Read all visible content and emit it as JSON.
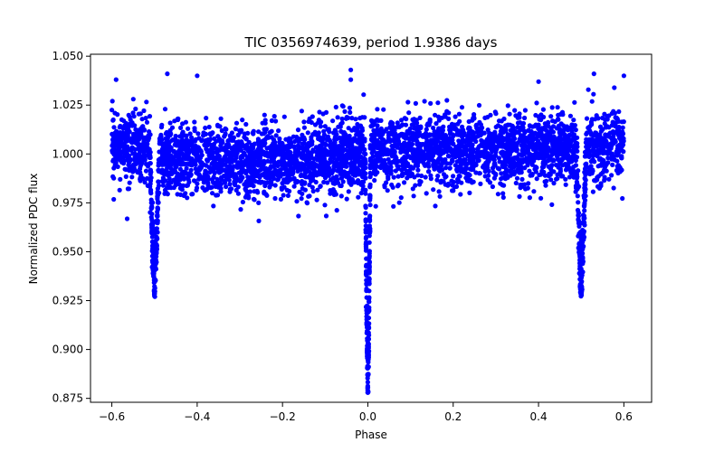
{
  "chart_data": {
    "type": "scatter",
    "title": "TIC 0356974639, period 1.9386 days",
    "xlabel": "Phase",
    "ylabel": "Normalized PDC flux",
    "xlim": [
      -0.65,
      0.665
    ],
    "ylim": [
      0.873,
      1.051
    ],
    "grid": false,
    "marker_color": "#0000ff",
    "x_ticks": [
      -0.6,
      -0.4,
      -0.2,
      0.0,
      0.2,
      0.4,
      0.6
    ],
    "x_tick_labels": [
      "−0.6",
      "−0.4",
      "−0.2",
      "0.0",
      "0.2",
      "0.4",
      "0.6"
    ],
    "y_ticks": [
      0.875,
      0.9,
      0.925,
      0.95,
      0.975,
      1.0,
      1.025,
      1.05
    ],
    "y_tick_labels": [
      "0.875",
      "0.900",
      "0.925",
      "0.950",
      "0.975",
      "1.000",
      "1.025",
      "1.050"
    ],
    "series": [
      {
        "name": "",
        "phase_range": [
          -0.6,
          0.6
        ],
        "baseline_flux": 1.0,
        "scatter_typical": 0.012,
        "outlier_points": [
          {
            "x": -0.04,
            "y": 1.043
          },
          {
            "x": -0.4,
            "y": 1.04
          },
          {
            "x": -0.47,
            "y": 1.041
          },
          {
            "x": 0.4,
            "y": 1.037
          },
          {
            "x": 0.53,
            "y": 1.041
          },
          {
            "x": 0.6,
            "y": 1.04
          },
          {
            "x": -0.59,
            "y": 1.038
          },
          {
            "x": -0.04,
            "y": 1.038
          }
        ],
        "eclipses": [
          {
            "label": "primary",
            "center_phase": 0.0,
            "min_flux": 0.878
          },
          {
            "label": "secondary",
            "center_phase": -0.5,
            "min_flux": 0.927
          },
          {
            "label": "secondary",
            "center_phase": 0.5,
            "min_flux": 0.927
          }
        ]
      }
    ]
  }
}
